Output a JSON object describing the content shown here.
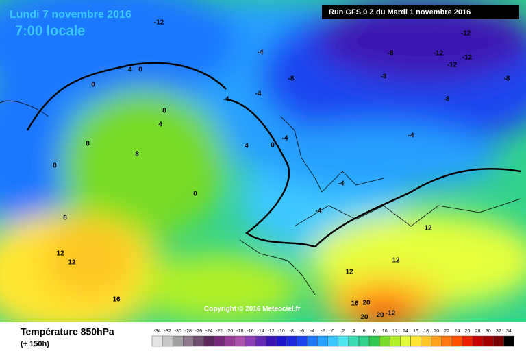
{
  "header": {
    "date": "Lundi 7 novembre 2016",
    "time": "7:00 locale",
    "run": "Run GFS 0 Z du Mardi 1 novembre 2016"
  },
  "copyright": "Copyright © 2016 Meteociel.fr",
  "legend": {
    "title": "Température 850hPa",
    "subtitle": "(+ 150h)",
    "values": [
      -34,
      -32,
      -30,
      -28,
      -26,
      -24,
      -22,
      -20,
      -18,
      -16,
      -14,
      -12,
      -10,
      -8,
      -6,
      -4,
      -2,
      0,
      2,
      4,
      6,
      8,
      10,
      12,
      14,
      16,
      18,
      20,
      22,
      24,
      26,
      28,
      30,
      32,
      34
    ],
    "colors": [
      "#e6e6e6",
      "#c8c8c8",
      "#a0a0a0",
      "#8c7a8c",
      "#6e506e",
      "#5a285a",
      "#782878",
      "#963c96",
      "#aa50aa",
      "#8c3cb4",
      "#6428b4",
      "#3c14b4",
      "#1e14c8",
      "#1e28dc",
      "#1e46f0",
      "#1e78ff",
      "#28a0ff",
      "#3cc8ff",
      "#50e6f0",
      "#3cdcb4",
      "#32d28c",
      "#32c850",
      "#78dc28",
      "#b4f028",
      "#e6ff3c",
      "#ffe632",
      "#ffc828",
      "#ffa01e",
      "#ff7814",
      "#ff5000",
      "#f01e00",
      "#c80000",
      "#a00000",
      "#780000",
      "#000000"
    ]
  },
  "contour_labels": [
    "-12",
    "-12",
    "-12",
    "-12",
    "-12",
    "-8",
    "-8",
    "-8",
    "-8",
    "-4",
    "-4",
    "-4",
    "-4",
    "-4",
    "-4",
    "-4",
    "0",
    "0",
    "0",
    "0",
    "0",
    "4",
    "4",
    "4",
    "8",
    "8",
    "8",
    "8",
    "12",
    "12",
    "12",
    "12",
    "12",
    "16",
    "16",
    "20",
    "20",
    "20",
    "-12",
    "-8"
  ]
}
